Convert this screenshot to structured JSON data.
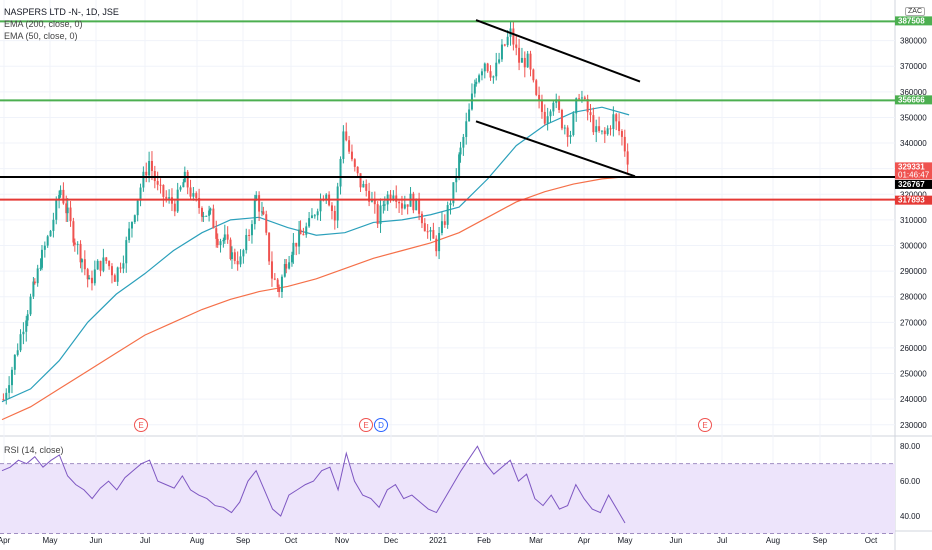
{
  "header": {
    "title": "NASPERS LTD -N-, 1D, JSE",
    "ema200": "EMA (200, close, 0)",
    "ema50": "EMA (50, close, 0)",
    "currency": "ZAC"
  },
  "rsi_panel": {
    "title": "RSI (14, close)",
    "ticks": [
      "80.00",
      "60.00",
      "40.00"
    ]
  },
  "chart_data": {
    "type": "candlestick",
    "x_axis_labels": [
      "Apr",
      "May",
      "Jun",
      "Jul",
      "Aug",
      "Sep",
      "Oct",
      "Nov",
      "Dec",
      "2021",
      "Feb",
      "Mar",
      "Apr",
      "May",
      "Jun",
      "Jul",
      "Aug",
      "Sep",
      "Oct"
    ],
    "y_axis_ticks": [
      230000,
      240000,
      250000,
      260000,
      270000,
      280000,
      290000,
      300000,
      310000,
      320000,
      330000,
      340000,
      350000,
      360000,
      370000,
      380000
    ],
    "ylim": [
      226000,
      390000
    ],
    "price_tags": [
      {
        "value": "387508",
        "color": "#4caf50"
      },
      {
        "value": "356666",
        "color": "#4caf50"
      },
      {
        "value": "329331",
        "color": "#ef5350",
        "countdown": "01:46:47"
      },
      {
        "value": "326767",
        "color": "#000000"
      },
      {
        "value": "317893",
        "color": "#e53935"
      }
    ],
    "horizontal_levels": [
      {
        "value": 387508,
        "color": "#4caf50"
      },
      {
        "value": 356666,
        "color": "#4caf50"
      },
      {
        "value": 326767,
        "color": "#000000"
      },
      {
        "value": 317893,
        "color": "#e53935"
      }
    ],
    "trendlines": [
      {
        "from": [
          "2021-01-18",
          388000
        ],
        "to": [
          "2021-05-03",
          364000
        ]
      },
      {
        "from": [
          "2021-01-18",
          348500
        ],
        "to": [
          "2021-04-30",
          327000
        ]
      }
    ],
    "events": [
      {
        "label": "E",
        "date": "2020-05-20",
        "color": "#ef5350"
      },
      {
        "label": "E",
        "date": "2020-11-23",
        "color": "#ef5350"
      },
      {
        "label": "D",
        "date": "2020-11-27",
        "color": "#2962ff"
      },
      {
        "label": "E",
        "date": "2021-06-21",
        "color": "#ef5350"
      }
    ],
    "price_path": [
      [
        240000,
        0
      ],
      [
        252000,
        6
      ],
      [
        265000,
        12
      ],
      [
        275000,
        17
      ],
      [
        285000,
        22
      ],
      [
        296000,
        27
      ],
      [
        306000,
        33
      ],
      [
        322000,
        40
      ],
      [
        312000,
        45
      ],
      [
        302000,
        50
      ],
      [
        295000,
        55
      ],
      [
        285000,
        60
      ],
      [
        292000,
        66
      ],
      [
        294000,
        72
      ],
      [
        288000,
        78
      ],
      [
        296000,
        84
      ],
      [
        310000,
        90
      ],
      [
        323000,
        96
      ],
      [
        333000,
        102
      ],
      [
        322000,
        108
      ],
      [
        318000,
        114
      ],
      [
        316000,
        120
      ],
      [
        326000,
        127
      ],
      [
        318000,
        133
      ],
      [
        313000,
        140
      ],
      [
        312000,
        145
      ],
      [
        303000,
        150
      ],
      [
        302000,
        155
      ],
      [
        296000,
        160
      ],
      [
        294000,
        166
      ],
      [
        305000,
        172
      ],
      [
        319000,
        177
      ],
      [
        310000,
        182
      ],
      [
        288000,
        188
      ],
      [
        283000,
        193
      ],
      [
        294000,
        198
      ],
      [
        300000,
        203
      ],
      [
        304000,
        208
      ],
      [
        308000,
        214
      ],
      [
        316000,
        220
      ],
      [
        322000,
        226
      ],
      [
        310000,
        232
      ],
      [
        346000,
        238
      ],
      [
        332000,
        244
      ],
      [
        324000,
        250
      ],
      [
        320000,
        256
      ],
      [
        310000,
        262
      ],
      [
        318000,
        267
      ],
      [
        322000,
        273
      ],
      [
        316000,
        279
      ],
      [
        318000,
        285
      ],
      [
        314000,
        291
      ],
      [
        305000,
        297
      ],
      [
        300000,
        303
      ],
      [
        310000,
        309
      ],
      [
        322000,
        315
      ],
      [
        337000,
        320
      ],
      [
        352000,
        326
      ],
      [
        366000,
        331
      ],
      [
        372000,
        337
      ],
      [
        366000,
        343
      ],
      [
        376000,
        349
      ],
      [
        383000,
        355
      ],
      [
        372000,
        361
      ],
      [
        372000,
        367
      ],
      [
        357000,
        373
      ],
      [
        350000,
        379
      ],
      [
        358000,
        385
      ],
      [
        348000,
        391
      ],
      [
        344000,
        397
      ],
      [
        360000,
        403
      ],
      [
        352000,
        409
      ],
      [
        344000,
        415
      ],
      [
        343000,
        421
      ],
      [
        350000,
        427
      ],
      [
        342000,
        433
      ],
      [
        330000,
        439
      ]
    ],
    "ema50_path": [
      [
        239000,
        0
      ],
      [
        244000,
        20
      ],
      [
        255000,
        40
      ],
      [
        270000,
        60
      ],
      [
        281000,
        80
      ],
      [
        289000,
        100
      ],
      [
        298000,
        120
      ],
      [
        305000,
        140
      ],
      [
        310000,
        160
      ],
      [
        311000,
        180
      ],
      [
        307000,
        200
      ],
      [
        304000,
        220
      ],
      [
        305000,
        240
      ],
      [
        309000,
        260
      ],
      [
        310000,
        280
      ],
      [
        312000,
        300
      ],
      [
        315000,
        320
      ],
      [
        326000,
        340
      ],
      [
        339000,
        360
      ],
      [
        347000,
        380
      ],
      [
        352000,
        400
      ],
      [
        354000,
        420
      ],
      [
        351000,
        439
      ]
    ],
    "ema200_path": [
      [
        232000,
        0
      ],
      [
        237000,
        20
      ],
      [
        244000,
        40
      ],
      [
        251000,
        60
      ],
      [
        258000,
        80
      ],
      [
        265000,
        100
      ],
      [
        270000,
        120
      ],
      [
        275000,
        140
      ],
      [
        279000,
        160
      ],
      [
        282000,
        180
      ],
      [
        284000,
        200
      ],
      [
        287000,
        220
      ],
      [
        291000,
        240
      ],
      [
        295000,
        260
      ],
      [
        298000,
        280
      ],
      [
        301000,
        300
      ],
      [
        305000,
        320
      ],
      [
        311000,
        340
      ],
      [
        317000,
        360
      ],
      [
        321000,
        380
      ],
      [
        324000,
        400
      ],
      [
        326000,
        420
      ],
      [
        327000,
        439
      ]
    ],
    "rsi": {
      "ylim": [
        32,
        83
      ],
      "upper": 70,
      "lower": 30,
      "values": [
        66,
        68,
        72,
        70,
        74,
        68,
        72,
        75,
        63,
        58,
        55,
        50,
        56,
        60,
        55,
        62,
        66,
        70,
        72,
        60,
        58,
        56,
        63,
        55,
        52,
        50,
        46,
        45,
        42,
        48,
        60,
        66,
        55,
        44,
        40,
        52,
        55,
        58,
        60,
        66,
        68,
        55,
        76,
        60,
        52,
        50,
        45,
        55,
        58,
        50,
        52,
        48,
        44,
        42,
        50,
        58,
        66,
        73,
        80,
        70,
        64,
        68,
        72,
        60,
        64,
        50,
        46,
        52,
        44,
        46,
        58,
        50,
        44,
        42,
        52,
        44,
        36
      ]
    }
  }
}
